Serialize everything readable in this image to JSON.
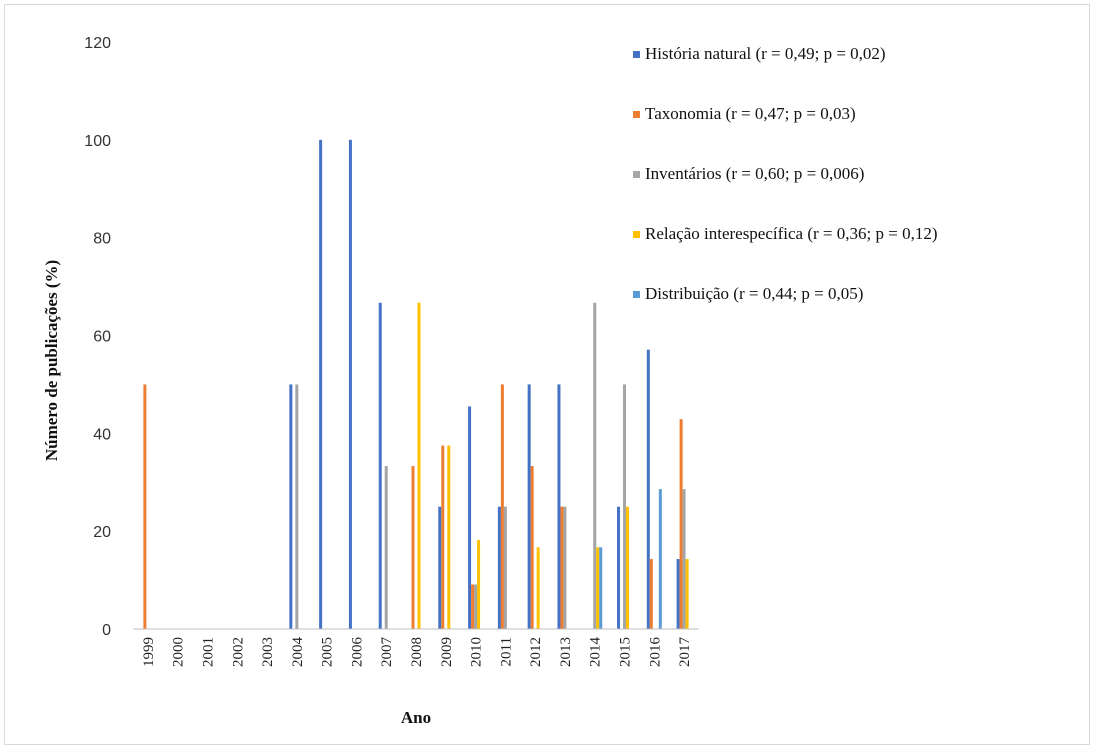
{
  "chart_data": {
    "type": "bar",
    "xlabel": "Ano",
    "ylabel": "Número de publicações (%)",
    "ylim": [
      0,
      120
    ],
    "yticks": [
      0,
      20,
      40,
      60,
      80,
      100,
      120
    ],
    "grid": false,
    "legend_position": "top-right",
    "categories": [
      "1999",
      "2000",
      "2001",
      "2002",
      "2003",
      "2004",
      "2005",
      "2006",
      "2007",
      "2008",
      "2009",
      "2010",
      "2011",
      "2012",
      "2013",
      "2014",
      "2015",
      "2016",
      "2017"
    ],
    "series": [
      {
        "name": "História natural (r = 0,49; p = 0,02)",
        "color": "#4472c4",
        "values": [
          0,
          0,
          0,
          0,
          0,
          50,
          100,
          100,
          66.7,
          0,
          25,
          45.5,
          25,
          50,
          50,
          0,
          25,
          57.1,
          14.3
        ]
      },
      {
        "name": "Taxonomia (r = 0,47; p = 0,03)",
        "color": "#ed7d31",
        "values": [
          50,
          0,
          0,
          0,
          0,
          0,
          0,
          0,
          0,
          33.3,
          37.5,
          9.1,
          50,
          33.3,
          25,
          0,
          0,
          14.3,
          42.9
        ]
      },
      {
        "name": "Inventários (r = 0,60; p = 0,006)",
        "color": "#a5a5a5",
        "values": [
          0,
          0,
          0,
          0,
          0,
          50,
          0,
          0,
          33.3,
          0,
          0,
          9.1,
          25,
          0,
          25,
          66.7,
          50,
          0,
          28.6
        ]
      },
      {
        "name": "Relação interespecífica (r = 0,36; p = 0,12)",
        "color": "#ffc000",
        "values": [
          0,
          0,
          0,
          0,
          0,
          0,
          0,
          0,
          0,
          66.7,
          37.5,
          18.2,
          0,
          16.7,
          0,
          16.7,
          25,
          0,
          14.3
        ]
      },
      {
        "name": "Distribuição (r = 0,44; p = 0,05)",
        "color": "#5b9bd5",
        "values": [
          0,
          0,
          0,
          0,
          0,
          0,
          0,
          0,
          0,
          0,
          0,
          0,
          0,
          0,
          0,
          16.7,
          0,
          28.6,
          0
        ]
      }
    ]
  }
}
